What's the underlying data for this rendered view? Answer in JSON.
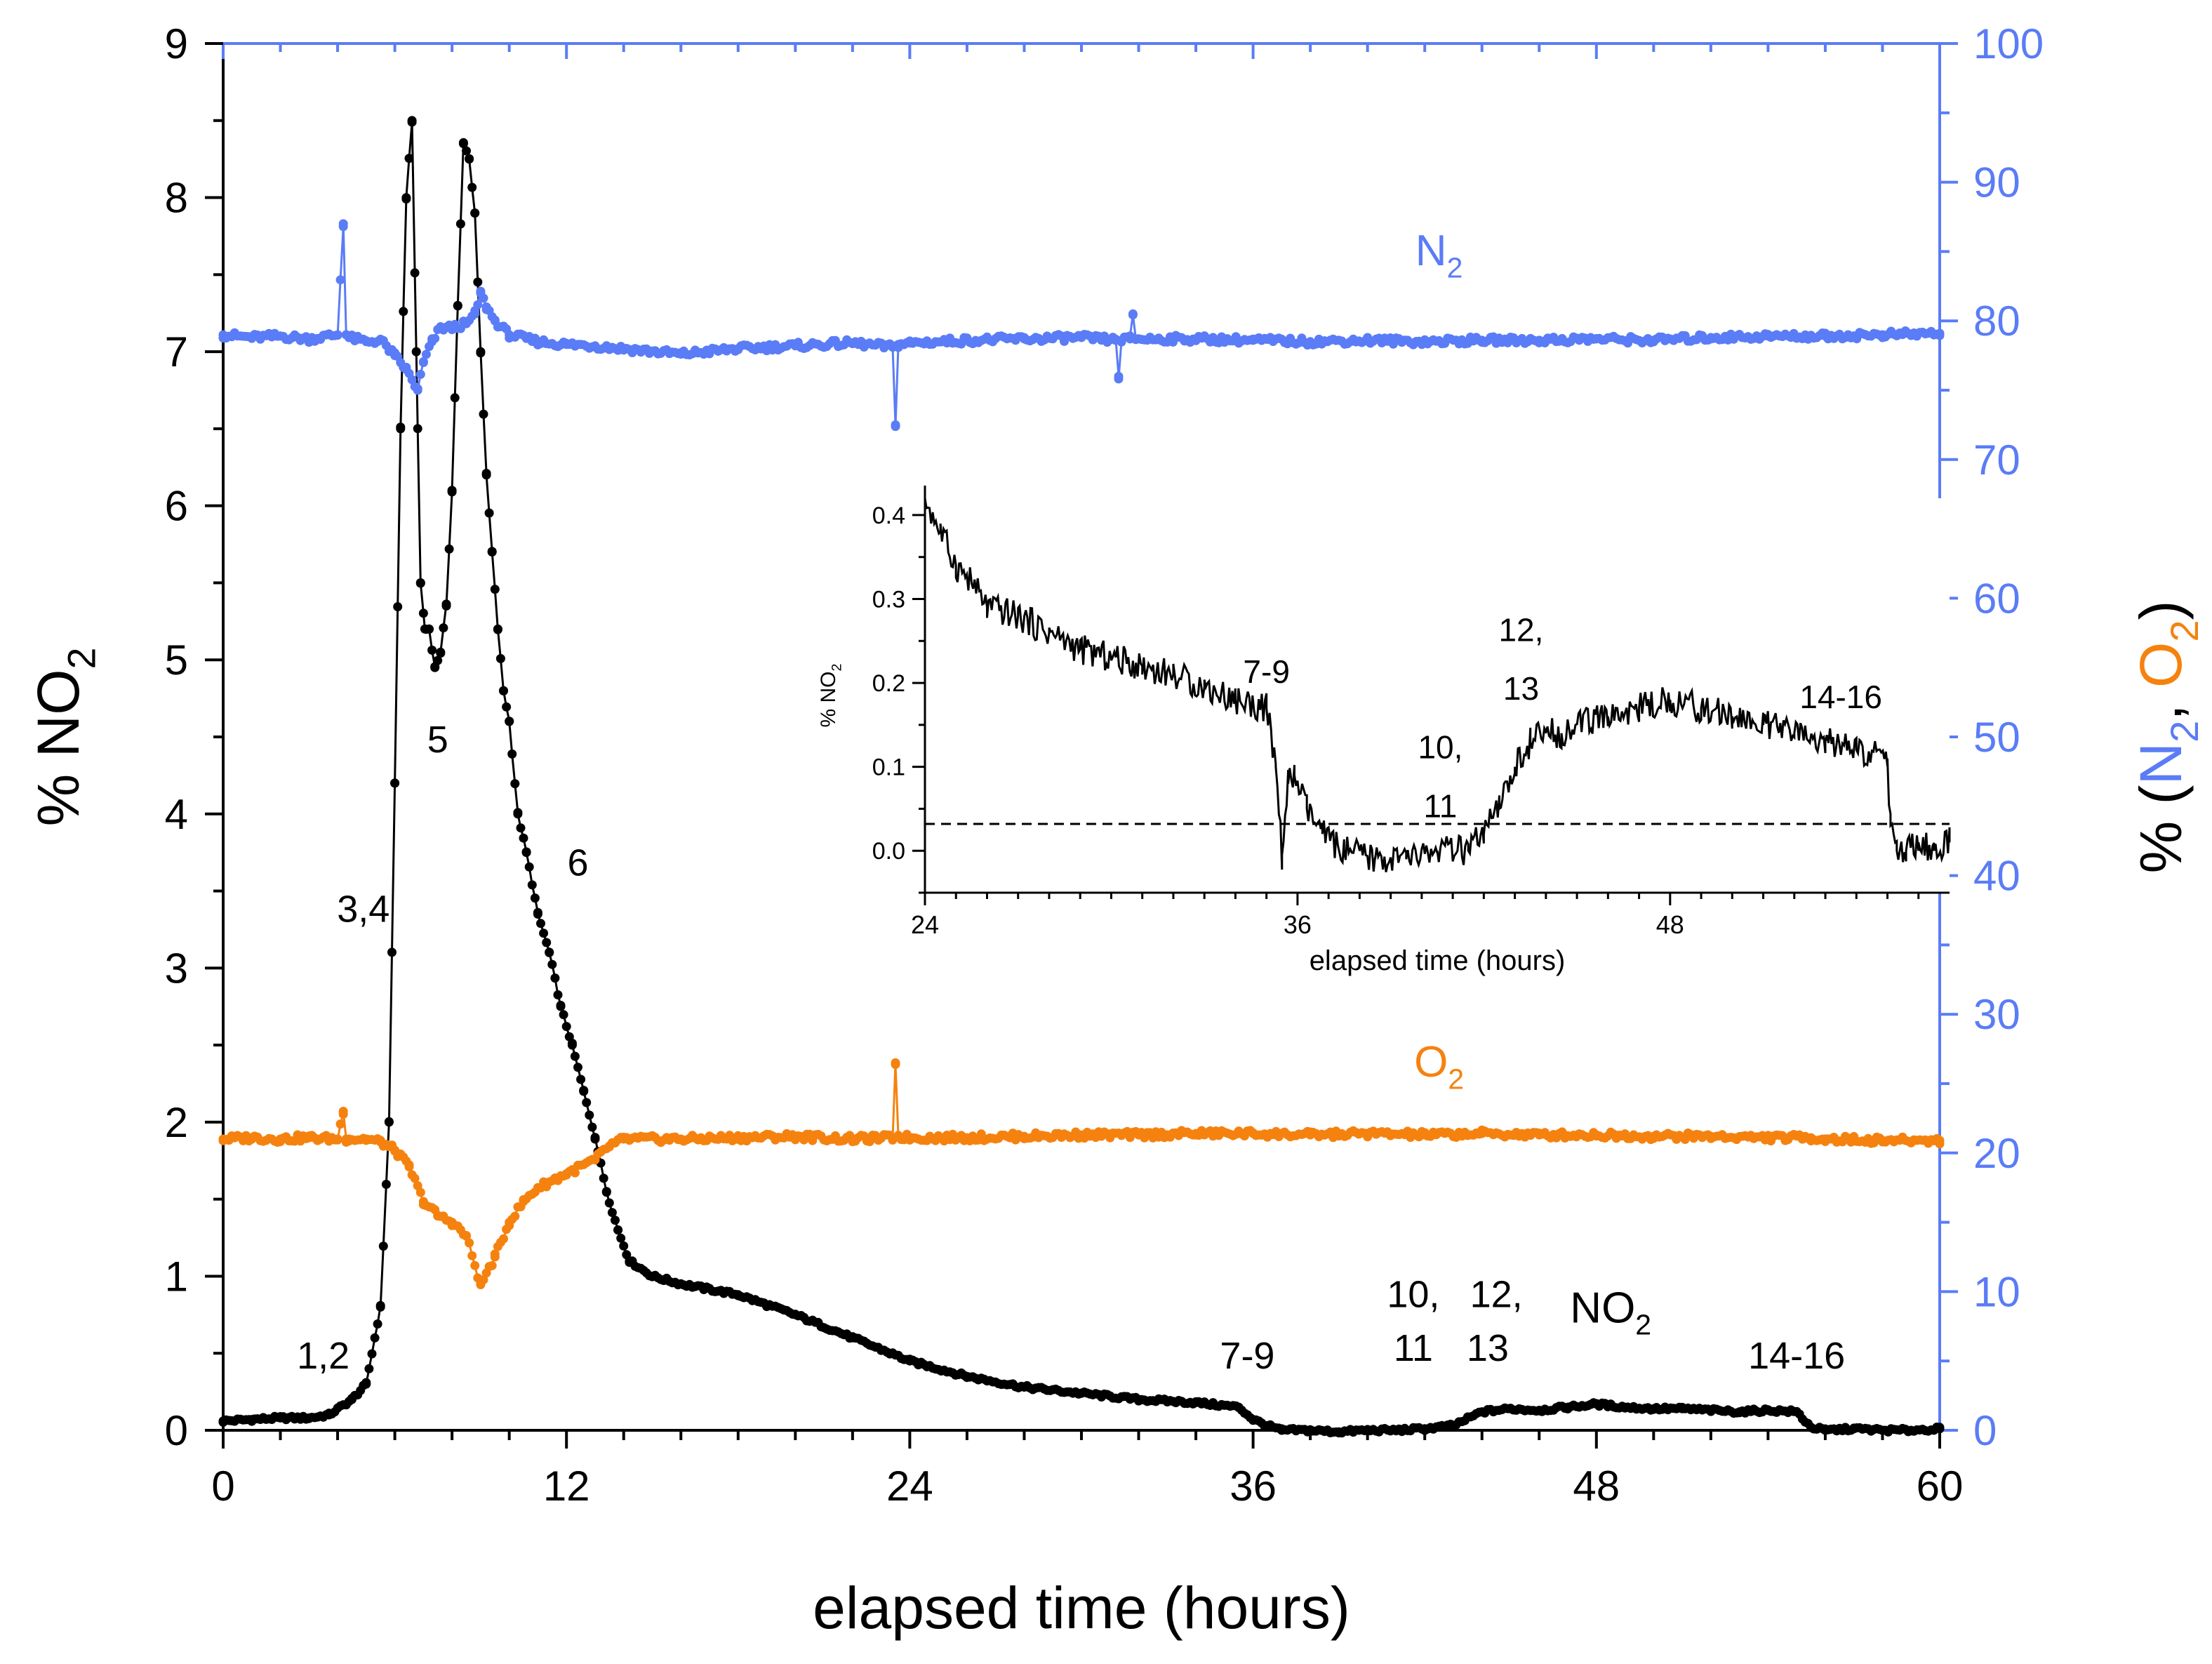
{
  "chart_data": {
    "type": "scatter",
    "title": "",
    "colors": {
      "no2": "#000000",
      "n2": "#5a7cf6",
      "o2": "#f5820f"
    },
    "xlabel": "elapsed time (hours)",
    "ylabel": "% NO",
    "ylabel_sub": "2",
    "ylabel_right": {
      "prefix": "% (",
      "n2": "N",
      "n2_sub": "2",
      "sep": ", ",
      "o2": "O",
      "o2_sub": "2",
      "suffix": ")"
    },
    "xlim": [
      0,
      60
    ],
    "ylim": [
      0,
      9
    ],
    "ylim_right": [
      0,
      100
    ],
    "x_ticks": [
      0,
      12,
      24,
      36,
      48,
      60
    ],
    "y_ticks": [
      0,
      1,
      2,
      3,
      4,
      5,
      6,
      7,
      8,
      9
    ],
    "y_ticks_right": [
      0,
      10,
      20,
      30,
      40,
      50,
      60,
      70,
      80,
      90,
      100
    ],
    "series": [
      {
        "name": "NO2",
        "label": "NO",
        "label_sub": "2",
        "axis": "left",
        "color": "#000000",
        "x": [
          0,
          1,
          2,
          3,
          3.7,
          4.5,
          5,
          5.5,
          5.8,
          6.0,
          6.2,
          6.4,
          6.6,
          6.75,
          6.9,
          7.05,
          7.2,
          7.4,
          7.6,
          7.8,
          8.0,
          8.2,
          8.4,
          8.6,
          8.8,
          9.0,
          9.2,
          9.4,
          9.6,
          9.8,
          10.0,
          10.3,
          10.6,
          11.0,
          11.4,
          11.8,
          12.2,
          12.6,
          13.0,
          13.4,
          13.8,
          14.2,
          15,
          16,
          18,
          20,
          22,
          24,
          26,
          28,
          30,
          32,
          34,
          35.5,
          36,
          36.5,
          37,
          38,
          39,
          40,
          41,
          42,
          43,
          44,
          45,
          46,
          47,
          48,
          49,
          50,
          51,
          52,
          53,
          54,
          55,
          55.5,
          56,
          57,
          58,
          59,
          60
        ],
        "y": [
          0.06,
          0.07,
          0.08,
          0.08,
          0.1,
          0.2,
          0.3,
          0.8,
          2.0,
          4.2,
          6.5,
          8.0,
          8.5,
          7.0,
          5.5,
          5.2,
          5.2,
          4.95,
          5.05,
          5.35,
          6.1,
          7.3,
          8.35,
          8.25,
          7.9,
          7.0,
          6.2,
          5.7,
          5.2,
          4.8,
          4.6,
          4.0,
          3.75,
          3.35,
          3.1,
          2.75,
          2.5,
          2.2,
          1.9,
          1.55,
          1.3,
          1.1,
          1.0,
          0.95,
          0.88,
          0.75,
          0.6,
          0.45,
          0.35,
          0.28,
          0.24,
          0.2,
          0.18,
          0.15,
          0.07,
          0.03,
          0.0,
          0.0,
          -0.01,
          0.0,
          0.0,
          0.01,
          0.03,
          0.12,
          0.14,
          0.13,
          0.15,
          0.17,
          0.15,
          0.14,
          0.14,
          0.13,
          0.12,
          0.13,
          0.12,
          0.02,
          0.0,
          0.01,
          0.0,
          0.0,
          0.01
        ]
      },
      {
        "name": "N2",
        "label": "N",
        "label_sub": "2",
        "axis": "right",
        "color": "#5a7cf6",
        "x": [
          0,
          1,
          2,
          3,
          4,
          4.2,
          4.3,
          4.4,
          5,
          5.5,
          6.0,
          6.4,
          6.8,
          7.0,
          7.3,
          7.6,
          8.0,
          8.5,
          8.8,
          9.0,
          9.2,
          9.5,
          10,
          11,
          12,
          13,
          14,
          15,
          16,
          18,
          20,
          22,
          23.4,
          23.5,
          23.6,
          24,
          26,
          28,
          30,
          31.2,
          31.3,
          31.4,
          31.7,
          31.8,
          31.9,
          34,
          36,
          38,
          40,
          42,
          44,
          46,
          48,
          50,
          52,
          54,
          56,
          58,
          60
        ],
        "y": [
          79,
          78.8,
          78.9,
          78.7,
          79,
          87,
          79,
          78.8,
          78.5,
          78.6,
          77.5,
          76.5,
          75,
          77,
          78.5,
          79.5,
          79.5,
          79.8,
          80.5,
          82,
          81,
          80,
          79,
          78.5,
          78.3,
          78.2,
          78,
          77.8,
          77.6,
          78,
          78.2,
          78.4,
          78.1,
          72.5,
          78.3,
          78.4,
          78.6,
          78.7,
          78.8,
          78.6,
          76,
          78.6,
          78.7,
          80.5,
          78.7,
          78.7,
          78.6,
          78.5,
          78.6,
          78.5,
          78.6,
          78.6,
          78.7,
          78.6,
          78.8,
          78.9,
          78.9,
          79.0,
          79.1
        ]
      },
      {
        "name": "O2",
        "label": "O",
        "label_sub": "2",
        "axis": "right",
        "color": "#f5820f",
        "x": [
          0,
          1,
          2,
          3,
          4,
          4.2,
          4.3,
          4.4,
          5,
          5.5,
          6.0,
          6.5,
          7,
          7.5,
          8,
          8.5,
          9,
          9.5,
          10,
          10.5,
          11,
          12,
          13,
          13.5,
          14,
          16,
          18,
          20,
          22,
          23.4,
          23.5,
          23.6,
          24,
          26,
          28,
          30,
          32,
          34,
          36,
          38,
          40,
          42,
          44,
          46,
          48,
          50,
          52,
          54,
          55.5,
          56,
          58,
          60
        ],
        "y": [
          21,
          21.1,
          21.0,
          21.1,
          21.0,
          23,
          21.0,
          21.0,
          21.0,
          20.8,
          20.2,
          19.0,
          16.5,
          15.5,
          15.0,
          14.0,
          10.5,
          12.5,
          15.0,
          16.5,
          17.5,
          18.5,
          19.5,
          20.5,
          21.0,
          21.0,
          21.1,
          21.2,
          21.0,
          21.1,
          26.5,
          21.2,
          21.1,
          21.1,
          21.2,
          21.3,
          21.3,
          21.4,
          21.4,
          21.3,
          21.4,
          21.3,
          21.4,
          21.3,
          21.3,
          21.2,
          21.2,
          21.1,
          21.1,
          21.0,
          20.9,
          20.9
        ]
      }
    ],
    "series_labels": [
      {
        "text": "N",
        "sub": "2",
        "x": 42.5,
        "y": 84,
        "axis": "right",
        "color": "#5a7cf6"
      },
      {
        "text": "O",
        "sub": "2",
        "x": 42.5,
        "y": 25.5,
        "axis": "right",
        "color": "#f5820f"
      },
      {
        "text": "NO",
        "sub": "2",
        "x": 48.5,
        "y": 0.7,
        "axis": "left",
        "color": "#000000"
      }
    ],
    "annotations": [
      {
        "text": "1,2",
        "x": 3.5,
        "y": 0.4
      },
      {
        "text": "3,4",
        "x": 4.9,
        "y": 3.3
      },
      {
        "text": "5",
        "x": 7.5,
        "y": 4.4
      },
      {
        "text": "6",
        "x": 12.4,
        "y": 3.6
      },
      {
        "text": "7-9",
        "x": 35.8,
        "y": 0.4
      },
      {
        "text": "10,",
        "x": 41.6,
        "y": 0.8
      },
      {
        "text": "11",
        "x": 41.6,
        "y": 0.45
      },
      {
        "text": "12,",
        "x": 44.5,
        "y": 0.8
      },
      {
        "text": "13",
        "x": 44.2,
        "y": 0.45
      },
      {
        "text": "14-16",
        "x": 55.0,
        "y": 0.4
      }
    ],
    "inset": {
      "type": "line",
      "xlabel": "elapsed time (hours)",
      "ylabel": "% NO",
      "ylabel_sub": "2",
      "xlim": [
        24,
        57
      ],
      "ylim": [
        -0.05,
        0.42
      ],
      "x_ticks": [
        24,
        36,
        48
      ],
      "y_ticks": [
        0.0,
        0.1,
        0.2,
        0.3,
        0.4
      ],
      "y_tick_labels": [
        "0.0",
        "0.1",
        "0.2",
        "0.3",
        "0.4"
      ],
      "dashed_level": 0.032,
      "x": [
        24,
        24.5,
        25,
        25.5,
        26,
        27,
        28,
        29,
        30,
        31,
        32,
        33,
        34,
        35,
        35.3,
        35.5,
        35.7,
        35.9,
        36.3,
        36.8,
        37.5,
        38.5,
        39.5,
        40.5,
        41.5,
        42.0,
        42.5,
        43.0,
        43.5,
        44.0,
        44.5,
        45,
        46,
        47,
        48,
        49,
        50,
        51,
        52,
        53,
        54,
        55,
        55.1,
        55.3,
        55.6,
        56,
        56.5,
        57
      ],
      "y": [
        0.42,
        0.38,
        0.34,
        0.32,
        0.29,
        0.28,
        0.26,
        0.24,
        0.23,
        0.22,
        0.21,
        0.195,
        0.18,
        0.17,
        0.1,
        -0.005,
        0.08,
        0.09,
        0.05,
        0.02,
        0.0,
        -0.01,
        -0.01,
        0.0,
        0.0,
        0.02,
        0.05,
        0.1,
        0.13,
        0.14,
        0.14,
        0.15,
        0.16,
        0.17,
        0.18,
        0.17,
        0.16,
        0.15,
        0.14,
        0.13,
        0.12,
        0.11,
        0.03,
        0.0,
        0.0,
        0.01,
        0.0,
        0.01
      ],
      "annotations": [
        {
          "text": "7-9",
          "x": 35.0,
          "y": 0.2
        },
        {
          "text": "10,",
          "x": 40.6,
          "y": 0.11
        },
        {
          "text": "11",
          "x": 40.6,
          "y": 0.04
        },
        {
          "text": "12,",
          "x": 43.2,
          "y": 0.25
        },
        {
          "text": "13",
          "x": 43.2,
          "y": 0.18
        },
        {
          "text": "14-16",
          "x": 53.5,
          "y": 0.17
        }
      ]
    }
  }
}
